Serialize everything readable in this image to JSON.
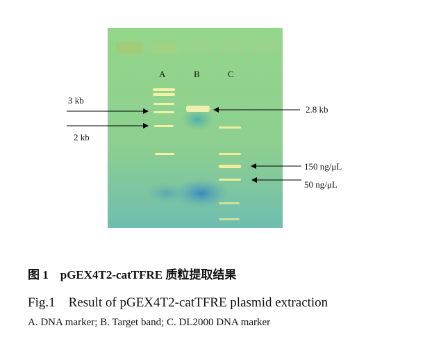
{
  "figure": {
    "lanes": [
      {
        "label": "A"
      },
      {
        "label": "B"
      },
      {
        "label": "C"
      }
    ],
    "annotations_left": [
      "3 kb",
      "2 kb"
    ],
    "annotations_right": [
      "2.8 kb",
      "150 ng/μL",
      "50 ng/μL"
    ],
    "colors": {
      "gel": "#8fd089",
      "band": "#f2f0a0",
      "dye": "#3a8fc0"
    }
  },
  "caption": {
    "chinese": "图 1　pGEX4T2-catTFRE 质粒提取结果",
    "english": "Fig.1　Result of pGEX4T2-catTFRE plasmid extraction",
    "legend": "A. DNA marker;  B. Target band;  C. DL2000 DNA marker"
  }
}
